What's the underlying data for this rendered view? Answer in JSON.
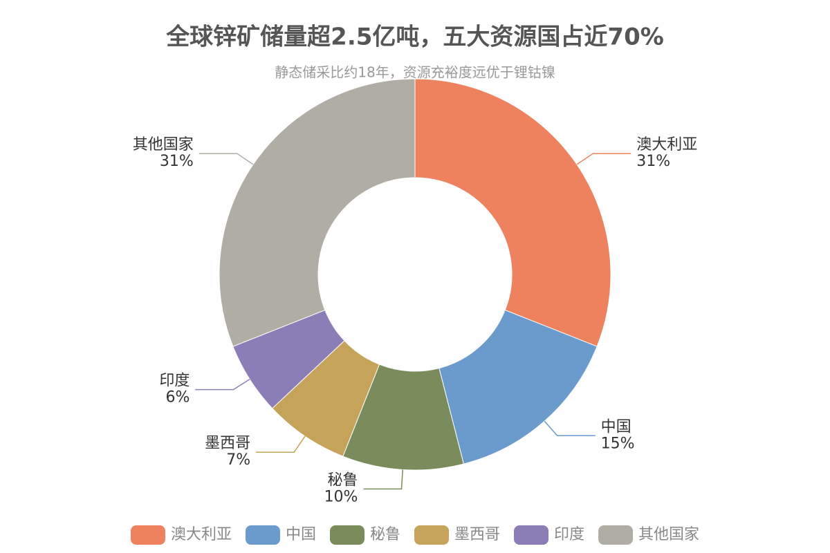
{
  "chart_data": {
    "type": "donut",
    "title": "全球锌矿储量超2.5亿吨，五大资源国占近70%",
    "subtitle": "静态储采比约18年，资源充裕度远优于锂钴镍",
    "categories": [
      "澳大利亚",
      "中国",
      "秘鲁",
      "墨西哥",
      "印度",
      "其他国家"
    ],
    "values": [
      31,
      15,
      10,
      7,
      6,
      31
    ],
    "value_labels": [
      "31%",
      "15%",
      "10%",
      "7%",
      "6%",
      "31%"
    ],
    "colors": [
      "#ee825f",
      "#6a9bcc",
      "#7a8c5c",
      "#c5a35a",
      "#8b7db5",
      "#b0ada5"
    ],
    "legend": "bottom"
  }
}
